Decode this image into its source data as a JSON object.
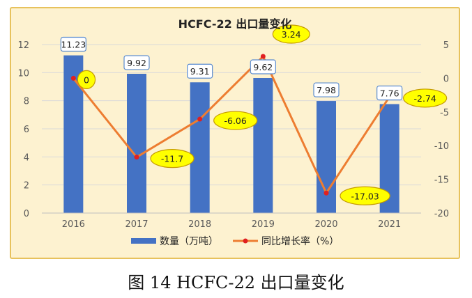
{
  "caption": "图 14 HCFC-22 出口量变化",
  "colors": {
    "panel_bg": "#fdf2d0",
    "panel_border": "#e7c25d",
    "bar": "#4472c4",
    "line": "#ed7d31",
    "marker": "#e02020",
    "bubble_fill": "#ffff00",
    "bubble_stroke": "#c49a00",
    "bar_label_stroke": "#5b8ccf",
    "grid": "#d9d9d9",
    "axis_text": "#595959"
  },
  "chart_data": {
    "type": "bar",
    "title": "HCFC-22 出口量变化",
    "categories": [
      "2016",
      "2017",
      "2018",
      "2019",
      "2020",
      "2021"
    ],
    "series": [
      {
        "name": "数量（万吨）",
        "type": "bar",
        "axis": "left",
        "values": [
          11.23,
          9.92,
          9.31,
          9.62,
          7.98,
          7.76
        ],
        "labels": [
          "11.23",
          "9.92",
          "9.31",
          "9.62",
          "7.98",
          "7.76"
        ]
      },
      {
        "name": "同比增长率（%）",
        "type": "line",
        "axis": "right",
        "values": [
          0,
          -11.7,
          -6.06,
          3.24,
          -17.03,
          -2.74
        ],
        "labels": [
          "0",
          "-11.7",
          "-6.06",
          "3.24",
          "-17.03",
          "-2.74"
        ]
      }
    ],
    "left_axis": {
      "ylim": [
        0,
        12
      ],
      "ticks": [
        "0",
        "2",
        "4",
        "6",
        "8",
        "10",
        "12"
      ]
    },
    "right_axis": {
      "ylim": [
        -20,
        5
      ],
      "ticks": [
        "5",
        "0",
        "-5",
        "-10",
        "-15",
        "-20"
      ]
    },
    "grid": true,
    "legend_position": "bottom"
  }
}
